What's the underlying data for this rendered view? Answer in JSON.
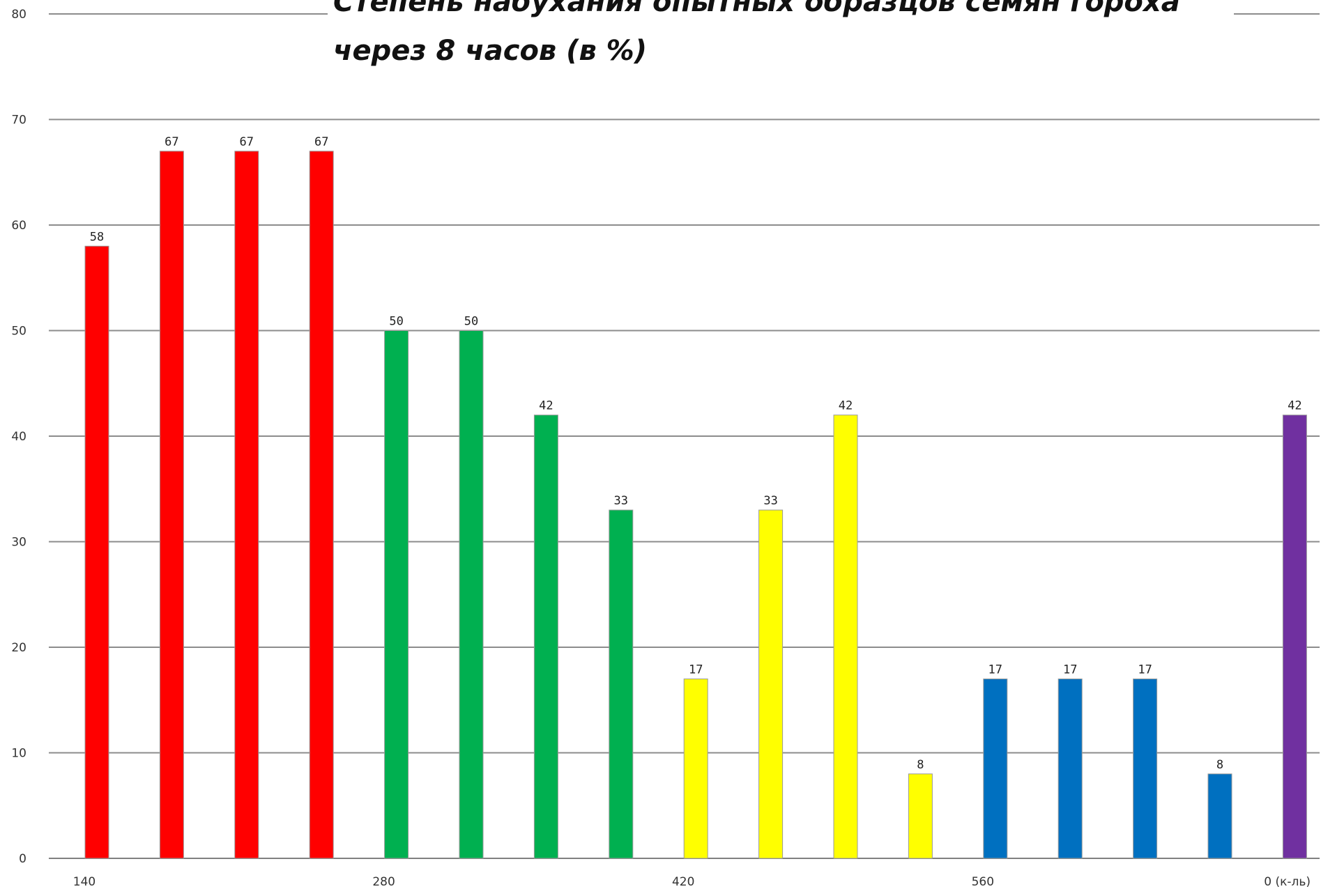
{
  "chart_data": {
    "type": "bar",
    "title_lines": [
      "Степень набухания  опытных образцов семян гороха",
      "через 8 часов (в %)"
    ],
    "ylim": [
      0,
      80
    ],
    "yticks": [
      0,
      10,
      20,
      30,
      40,
      50,
      60,
      70,
      80
    ],
    "grid": true,
    "x_tick_labels": [
      {
        "label": "140",
        "slot": 0
      },
      {
        "label": "280",
        "slot": 4
      },
      {
        "label": "420",
        "slot": 8
      },
      {
        "label": "560",
        "slot": 12
      },
      {
        "label": "0 (к-ль)",
        "slot": 16
      }
    ],
    "values": [
      58,
      67,
      67,
      67,
      50,
      50,
      42,
      33,
      17,
      33,
      42,
      8,
      17,
      17,
      17,
      8,
      42
    ],
    "bar_colors": [
      "#ff0000",
      "#ff0000",
      "#ff0000",
      "#ff0000",
      "#00b050",
      "#00b050",
      "#00b050",
      "#00b050",
      "#ffff00",
      "#ffff00",
      "#ffff00",
      "#ffff00",
      "#0070c0",
      "#0070c0",
      "#0070c0",
      "#0070c0",
      "#7030a0"
    ]
  }
}
